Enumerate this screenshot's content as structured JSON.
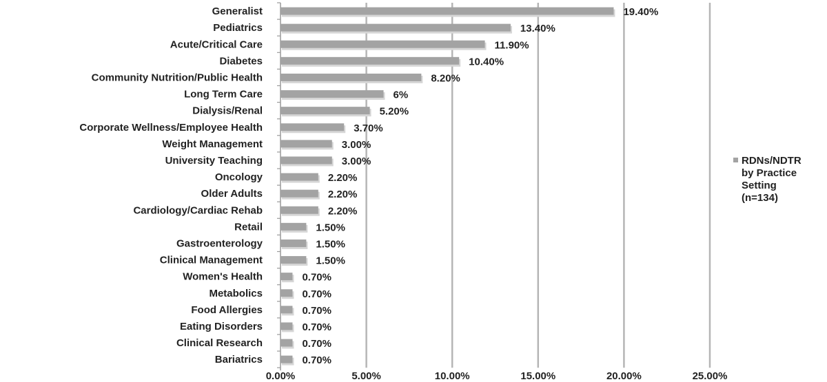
{
  "chart_data": {
    "type": "bar",
    "orientation": "horizontal",
    "categories": [
      "Generalist",
      "Pediatrics",
      "Acute/Critical Care",
      "Diabetes",
      "Community Nutrition/Public Health",
      "Long Term Care",
      "Dialysis/Renal",
      "Corporate Wellness/Employee Health",
      "Weight Management",
      "University Teaching",
      "Oncology",
      "Older Adults",
      "Cardiology/Cardiac Rehab",
      "Retail",
      "Gastroenterology",
      "Clinical Management",
      "Women's Health",
      "Metabolics",
      "Food Allergies",
      "Eating Disorders",
      "Clinical Research",
      "Bariatrics"
    ],
    "series": [
      {
        "name": "RDNs/NDTR by Practice Setting (n=134)",
        "legend_lines": [
          "RDNs/NDTR",
          "by Practice",
          "Setting",
          "(n=134)"
        ],
        "values": [
          19.4,
          13.4,
          11.9,
          10.4,
          8.2,
          6.0,
          5.2,
          3.7,
          3.0,
          3.0,
          2.2,
          2.2,
          2.2,
          1.5,
          1.5,
          1.5,
          0.7,
          0.7,
          0.7,
          0.7,
          0.7,
          0.7
        ],
        "labels": [
          "19.40%",
          "13.40%",
          "11.90%",
          "10.40%",
          "8.20%",
          "6%",
          "5.20%",
          "3.70%",
          "3.00%",
          "3.00%",
          "2.20%",
          "2.20%",
          "2.20%",
          "1.50%",
          "1.50%",
          "1.50%",
          "0.70%",
          "0.70%",
          "0.70%",
          "0.70%",
          "0.70%",
          "0.70%"
        ]
      }
    ],
    "xlim": [
      0,
      25
    ],
    "xticks": [
      0,
      5,
      10,
      15,
      20,
      25
    ],
    "xtick_labels": [
      "0.00%",
      "5.00%",
      "10.00%",
      "15.00%",
      "20.00%",
      "25.00%"
    ],
    "grid": "vertical",
    "legend": "right",
    "colors": {
      "bar": "#a3a3a3",
      "bar_shadow": "#d6d6d6",
      "grid": "#b5b5b5",
      "axis": "#9a9a9a"
    }
  }
}
